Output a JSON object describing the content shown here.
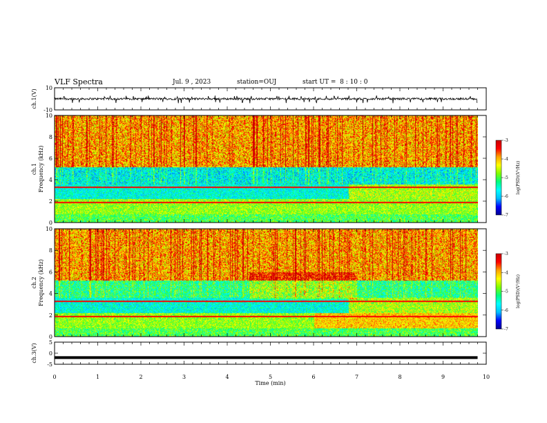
{
  "header": {
    "title": "VLF Spectra",
    "date": "Jul. 9 , 2023",
    "station": "station=OUJ",
    "start_ut": "start UT =  8 : 10 : 0"
  },
  "colors": {
    "colormap": [
      "#00008f",
      "#0000ff",
      "#00bfff",
      "#00ffff",
      "#00ff7f",
      "#7fff00",
      "#ffff00",
      "#ffa500",
      "#ff0000",
      "#c80000"
    ]
  },
  "chart_data": [
    {
      "type": "line",
      "panel": "ch1-waveform",
      "ylabel": "ch.1(V)",
      "ylim": [
        -10,
        10
      ],
      "yticks": [
        "10",
        "-10"
      ],
      "series": [
        {
          "description_level_min": -3,
          "description_level_max": 3
        }
      ]
    },
    {
      "type": "heatmap",
      "panel": "ch1-spectrogram",
      "ylabel": "ch.1\nFrequency (kHz)",
      "ylabel_line1": "ch.1",
      "ylabel_line2": "Frequency (kHz)",
      "ylim": [
        0,
        10
      ],
      "yticks": [
        "0",
        "2",
        "4",
        "6",
        "8",
        "10"
      ],
      "xlim": [
        0,
        10
      ],
      "colorbar": {
        "label": "log(PSD)(V²/Hz)",
        "range": [
          -7,
          -3
        ],
        "ticks": [
          "-3",
          "-4",
          "-5",
          "-6",
          "-7"
        ]
      }
    },
    {
      "type": "heatmap",
      "panel": "ch2-spectrogram",
      "ylabel_line1": "ch.2",
      "ylabel_line2": "Frequency (kHz)",
      "ylim": [
        0,
        10
      ],
      "yticks": [
        "0",
        "2",
        "4",
        "6",
        "8",
        "10"
      ],
      "xlim": [
        0,
        10
      ],
      "colorbar": {
        "label": "log(PSD)(V²/Hz)",
        "range": [
          -7,
          -3
        ],
        "ticks": [
          "-3",
          "-4",
          "-5",
          "-6",
          "-7"
        ]
      }
    },
    {
      "type": "line",
      "panel": "ch3-waveform",
      "ylabel": "ch.3(V)",
      "ylim": [
        -5,
        5
      ],
      "yticks": [
        "5",
        "0",
        "-5"
      ],
      "series": [
        {
          "constant_value": -2
        }
      ]
    }
  ],
  "x_axis": {
    "label": "Time (min)",
    "range": [
      0,
      10
    ],
    "ticks": [
      "0",
      "1",
      "2",
      "3",
      "4",
      "5",
      "6",
      "7",
      "8",
      "9",
      "10"
    ],
    "data_end": 9.8
  }
}
